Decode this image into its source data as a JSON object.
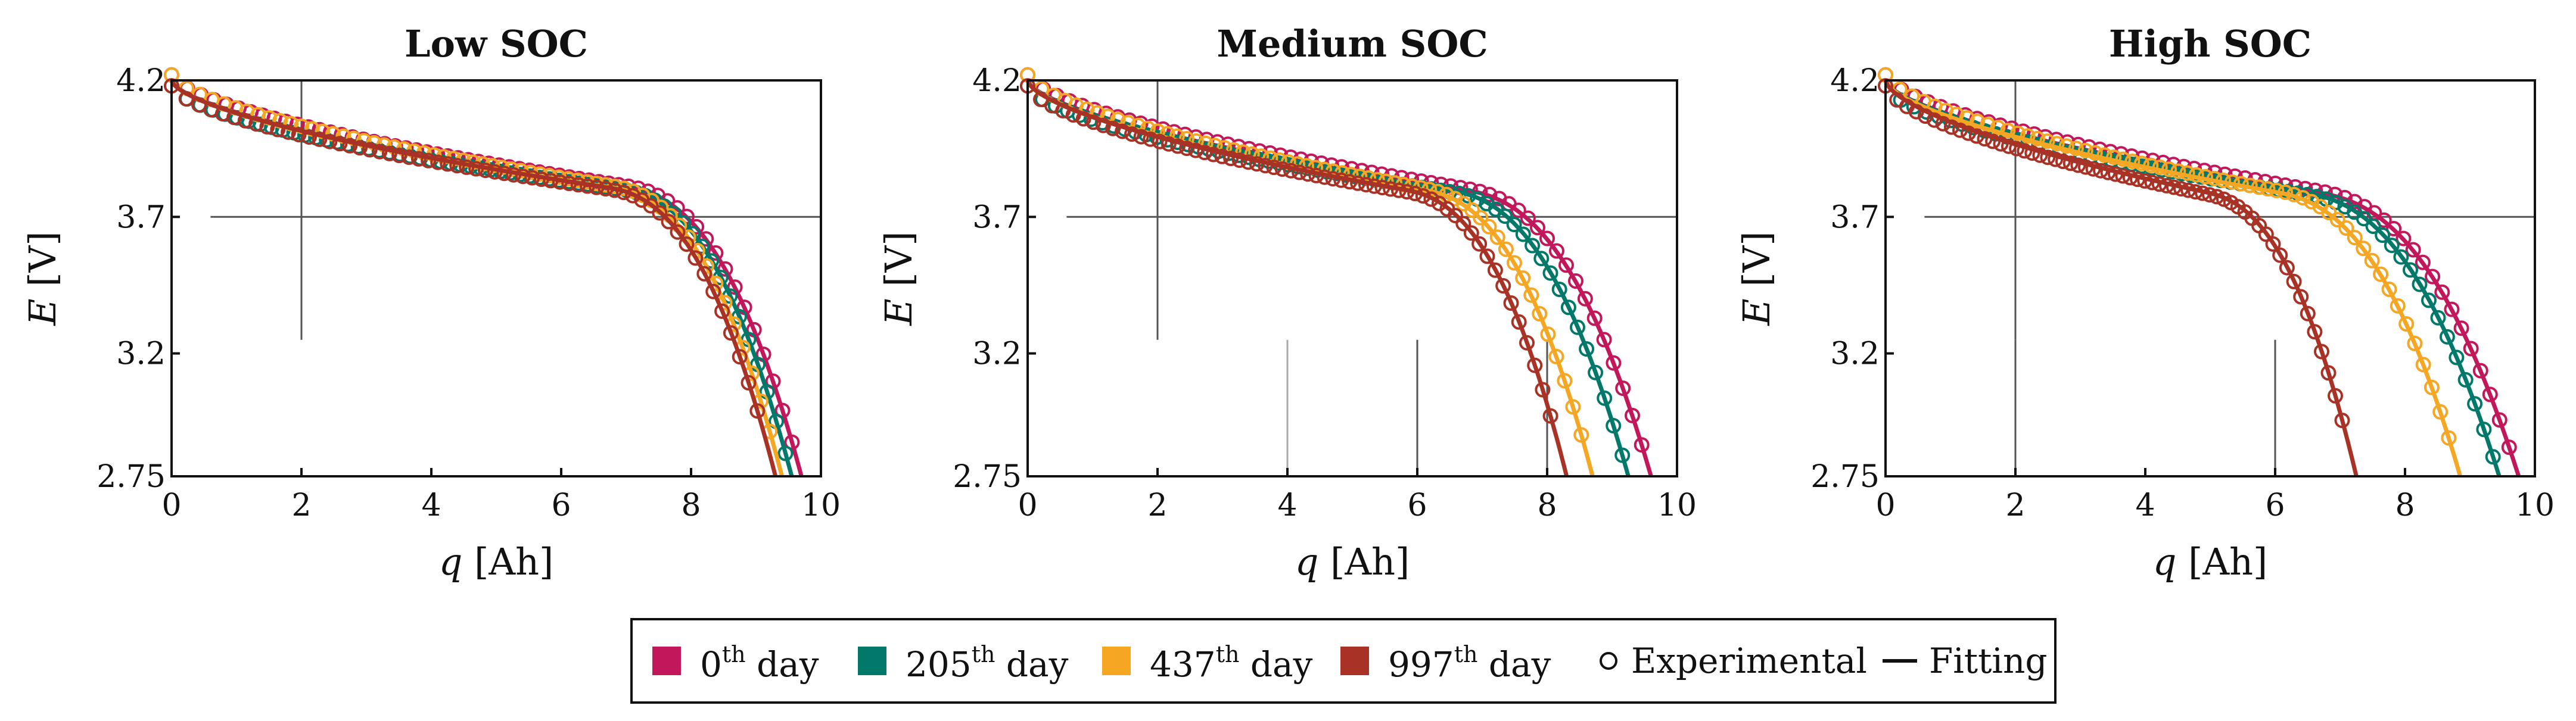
{
  "chart_data": [
    {
      "type": "line",
      "title": "Low SOC",
      "xlabel_var": "q",
      "xlabel_unit": "[Ah]",
      "ylabel_var": "E",
      "ylabel_unit": "[V]",
      "xlim": [
        0,
        10
      ],
      "ylim": [
        2.75,
        4.2
      ],
      "xticks": [
        "0",
        "2",
        "4",
        "6",
        "8",
        "10"
      ],
      "yticks": [
        "2.75",
        "3.2",
        "3.7",
        "4.2"
      ],
      "series": [
        {
          "name": "0th day",
          "color": "#C2185B",
          "capacity": 9.7
        },
        {
          "name": "205th day",
          "color": "#00796B",
          "capacity": 9.55
        },
        {
          "name": "437th day",
          "color": "#F5A623",
          "capacity": 9.4
        },
        {
          "name": "997th day",
          "color": "#A93226",
          "capacity": 9.3
        }
      ]
    },
    {
      "type": "line",
      "title": "Medium SOC",
      "xlabel_var": "q",
      "xlabel_unit": "[Ah]",
      "ylabel_var": "E",
      "ylabel_unit": "[V]",
      "xlim": [
        0,
        10
      ],
      "ylim": [
        2.75,
        4.2
      ],
      "xticks": [
        "0",
        "2",
        "4",
        "6",
        "8",
        "10"
      ],
      "yticks": [
        "2.75",
        "3.2",
        "3.7",
        "4.2"
      ],
      "series": [
        {
          "name": "0th day",
          "color": "#C2185B",
          "capacity": 9.6
        },
        {
          "name": "205th day",
          "color": "#00796B",
          "capacity": 9.25
        },
        {
          "name": "437th day",
          "color": "#F5A623",
          "capacity": 8.7
        },
        {
          "name": "997th day",
          "color": "#A93226",
          "capacity": 8.3
        }
      ]
    },
    {
      "type": "line",
      "title": "High SOC",
      "xlabel_var": "q",
      "xlabel_unit": "[Ah]",
      "ylabel_var": "E",
      "ylabel_unit": "[V]",
      "xlim": [
        0,
        10
      ],
      "ylim": [
        2.75,
        4.2
      ],
      "xticks": [
        "0",
        "2",
        "4",
        "6",
        "8",
        "10"
      ],
      "yticks": [
        "2.75",
        "3.2",
        "3.7",
        "4.2"
      ],
      "series": [
        {
          "name": "0th day",
          "color": "#C2185B",
          "capacity": 9.75
        },
        {
          "name": "205th day",
          "color": "#00796B",
          "capacity": 9.45
        },
        {
          "name": "437th day",
          "color": "#F5A623",
          "capacity": 8.85
        },
        {
          "name": "997th day",
          "color": "#A93226",
          "capacity": 7.25
        }
      ]
    }
  ],
  "legend": {
    "items": [
      {
        "base": "0",
        "sup": "th",
        "rest": " day",
        "color": "#C2185B"
      },
      {
        "base": "205",
        "sup": "th",
        "rest": " day",
        "color": "#00796B"
      },
      {
        "base": "437",
        "sup": "th",
        "rest": " day",
        "color": "#F5A623"
      },
      {
        "base": "997",
        "sup": "th",
        "rest": " day",
        "color": "#A93226"
      }
    ],
    "experimental_label": "Experimental",
    "fitting_label": "Fitting"
  }
}
